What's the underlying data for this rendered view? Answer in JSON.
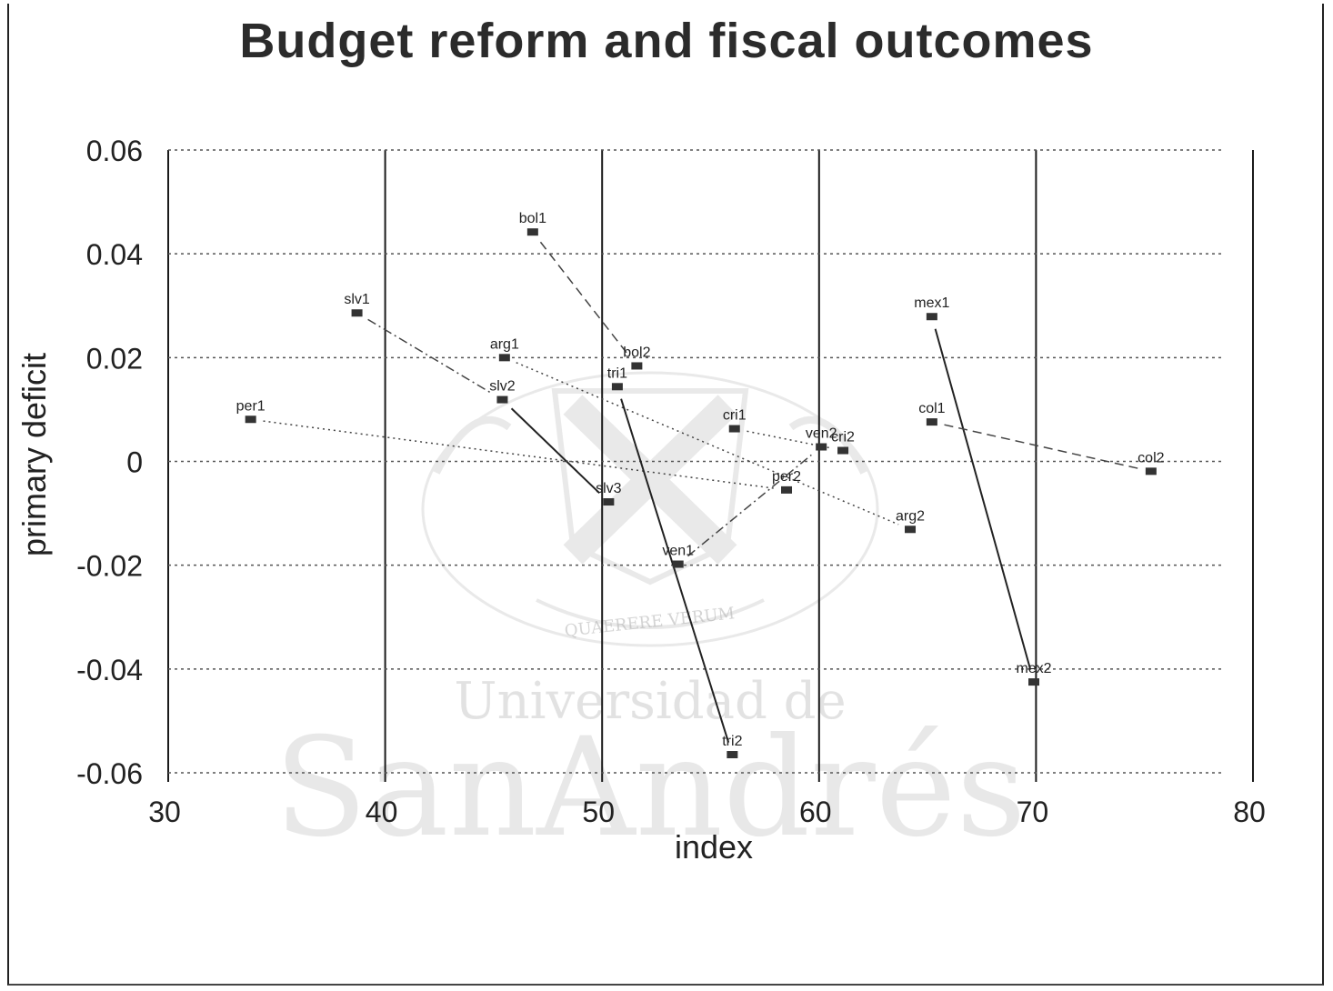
{
  "watermark": {
    "motto": "QUAERERE VERUM",
    "line1": "Universidad de",
    "line2": "SanAndrés"
  },
  "chart_data": {
    "type": "scatter",
    "title": "Budget reform and fiscal outcomes",
    "xlabel": "index",
    "ylabel": "primary deficit",
    "xlim": [
      30,
      80
    ],
    "ylim": [
      -0.06,
      0.06
    ],
    "x_ticks": [
      30,
      40,
      50,
      60,
      70,
      80
    ],
    "x_tick_labels": [
      "30",
      "40",
      "50",
      "60",
      "70",
      "80"
    ],
    "y_ticks": [
      0.06,
      0.04,
      0.02,
      0,
      -0.02,
      -0.04,
      -0.06
    ],
    "y_tick_labels": [
      "0.06",
      "0.04",
      "0.02",
      "0",
      "-0.02",
      "-0.04",
      "-0.06"
    ],
    "grid": "vertical solid, horizontal dotted",
    "points": [
      {
        "label": "bol1",
        "x": 46.8,
        "y": 0.0442
      },
      {
        "label": "bol2",
        "x": 51.6,
        "y": 0.0184
      },
      {
        "label": "slv1",
        "x": 38.7,
        "y": 0.0286
      },
      {
        "label": "slv2",
        "x": 45.4,
        "y": 0.0119
      },
      {
        "label": "slv3",
        "x": 50.3,
        "y": -0.0078
      },
      {
        "label": "arg1",
        "x": 45.5,
        "y": 0.02
      },
      {
        "label": "arg2",
        "x": 64.2,
        "y": -0.0131
      },
      {
        "label": "per1",
        "x": 33.8,
        "y": 0.0081
      },
      {
        "label": "per2",
        "x": 58.5,
        "y": -0.0055
      },
      {
        "label": "tri1",
        "x": 50.7,
        "y": 0.0144
      },
      {
        "label": "tri2",
        "x": 56.0,
        "y": -0.0565
      },
      {
        "label": "cri1",
        "x": 56.1,
        "y": 0.0063
      },
      {
        "label": "cri2",
        "x": 61.1,
        "y": 0.0021
      },
      {
        "label": "ven1",
        "x": 53.5,
        "y": -0.0198
      },
      {
        "label": "ven2",
        "x": 60.1,
        "y": 0.0028
      },
      {
        "label": "mex1",
        "x": 65.2,
        "y": 0.0279
      },
      {
        "label": "mex2",
        "x": 69.9,
        "y": -0.0425
      },
      {
        "label": "col1",
        "x": 65.2,
        "y": 0.0076
      },
      {
        "label": "col2",
        "x": 75.3,
        "y": -0.0019
      }
    ],
    "segments": [
      {
        "from": "bol1",
        "to": "bol2",
        "style": "dashed"
      },
      {
        "from": "slv1",
        "to": "slv2",
        "style": "dashdot"
      },
      {
        "from": "slv2",
        "to": "slv3",
        "style": "solid"
      },
      {
        "from": "arg1",
        "to": "arg2",
        "style": "dotted"
      },
      {
        "from": "per1",
        "to": "per2",
        "style": "dotted"
      },
      {
        "from": "tri1",
        "to": "tri2",
        "style": "solid"
      },
      {
        "from": "cri1",
        "to": "cri2",
        "style": "dotted"
      },
      {
        "from": "ven1",
        "to": "ven2",
        "style": "dashdot"
      },
      {
        "from": "mex1",
        "to": "mex2",
        "style": "solid"
      },
      {
        "from": "col1",
        "to": "col2",
        "style": "dashed"
      }
    ]
  }
}
